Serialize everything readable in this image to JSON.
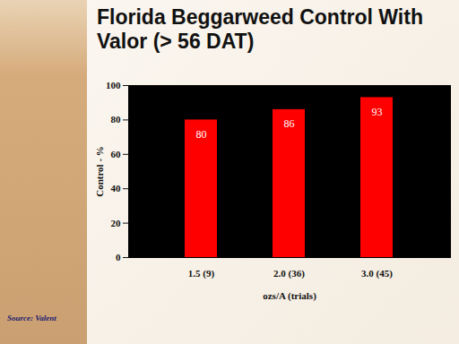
{
  "chart_data": {
    "type": "bar",
    "title": "Florida Beggarweed Control With Valor (> 56 DAT)",
    "source": "Source: Valent",
    "categories": [
      "1.5 (9)",
      "2.0 (36)",
      "3.0 (45)"
    ],
    "values": [
      80,
      86,
      93
    ],
    "color": "#ff0000",
    "x_label": "ozs/A (trials)",
    "y_label": "Control - %",
    "ylim": [
      0,
      100
    ],
    "yticks": [
      0,
      20,
      40,
      60,
      80,
      100
    ],
    "grid": false,
    "data_labels": true
  }
}
